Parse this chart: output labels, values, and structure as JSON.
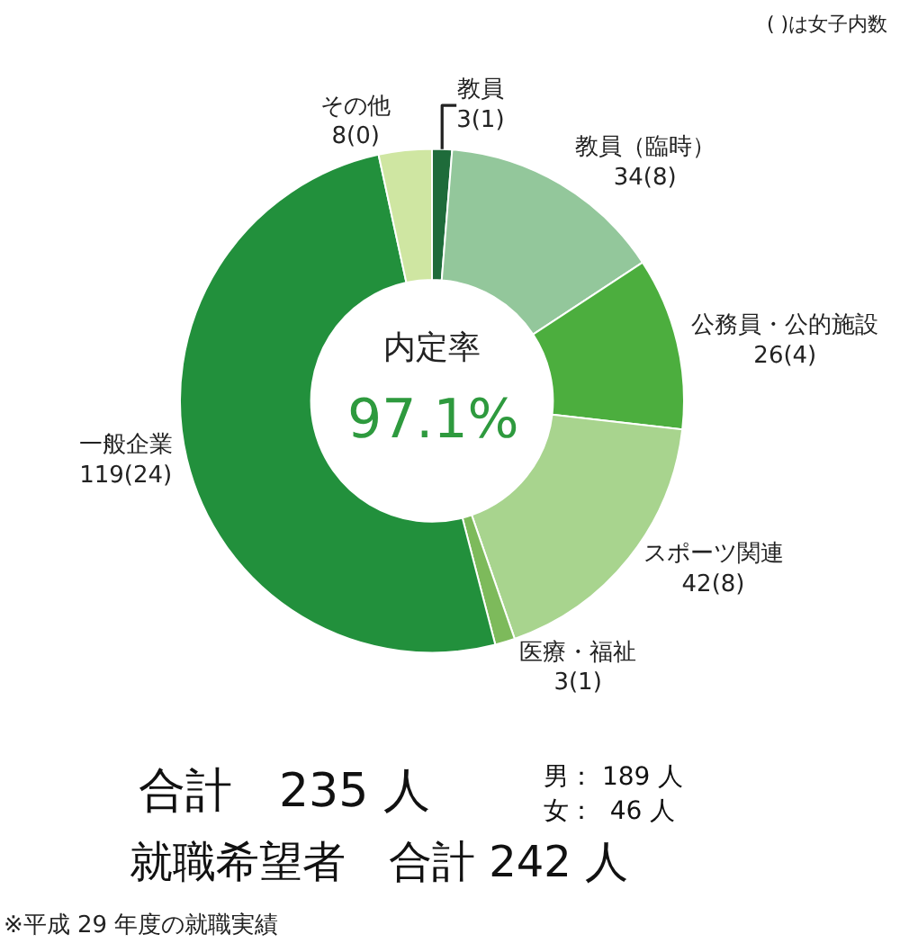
{
  "chart_data": {
    "type": "donut",
    "categories": [
      "教員",
      "教員（臨時）",
      "公務員・公的施設",
      "スポーツ関連",
      "医療・福祉",
      "一般企業",
      "その他"
    ],
    "values": [
      3,
      34,
      26,
      42,
      3,
      119,
      8
    ],
    "value_labels": [
      "3(1)",
      "34(8)",
      "26(4)",
      "42(8)",
      "3(1)",
      "119(24)",
      "8(0)"
    ],
    "colors": [
      "#1e6b3a",
      "#93c79b",
      "#4cae3e",
      "#a8d48e",
      "#7dba5b",
      "#22903c",
      "#cfe6a2"
    ],
    "annotations": [
      "( )は女子内数",
      "内定率",
      "97.1%",
      "合計　235 人",
      "男： 189 人",
      "女：  46 人",
      "就職希望者　合計 242 人",
      "※平成 29 年度の就職実績"
    ]
  }
}
